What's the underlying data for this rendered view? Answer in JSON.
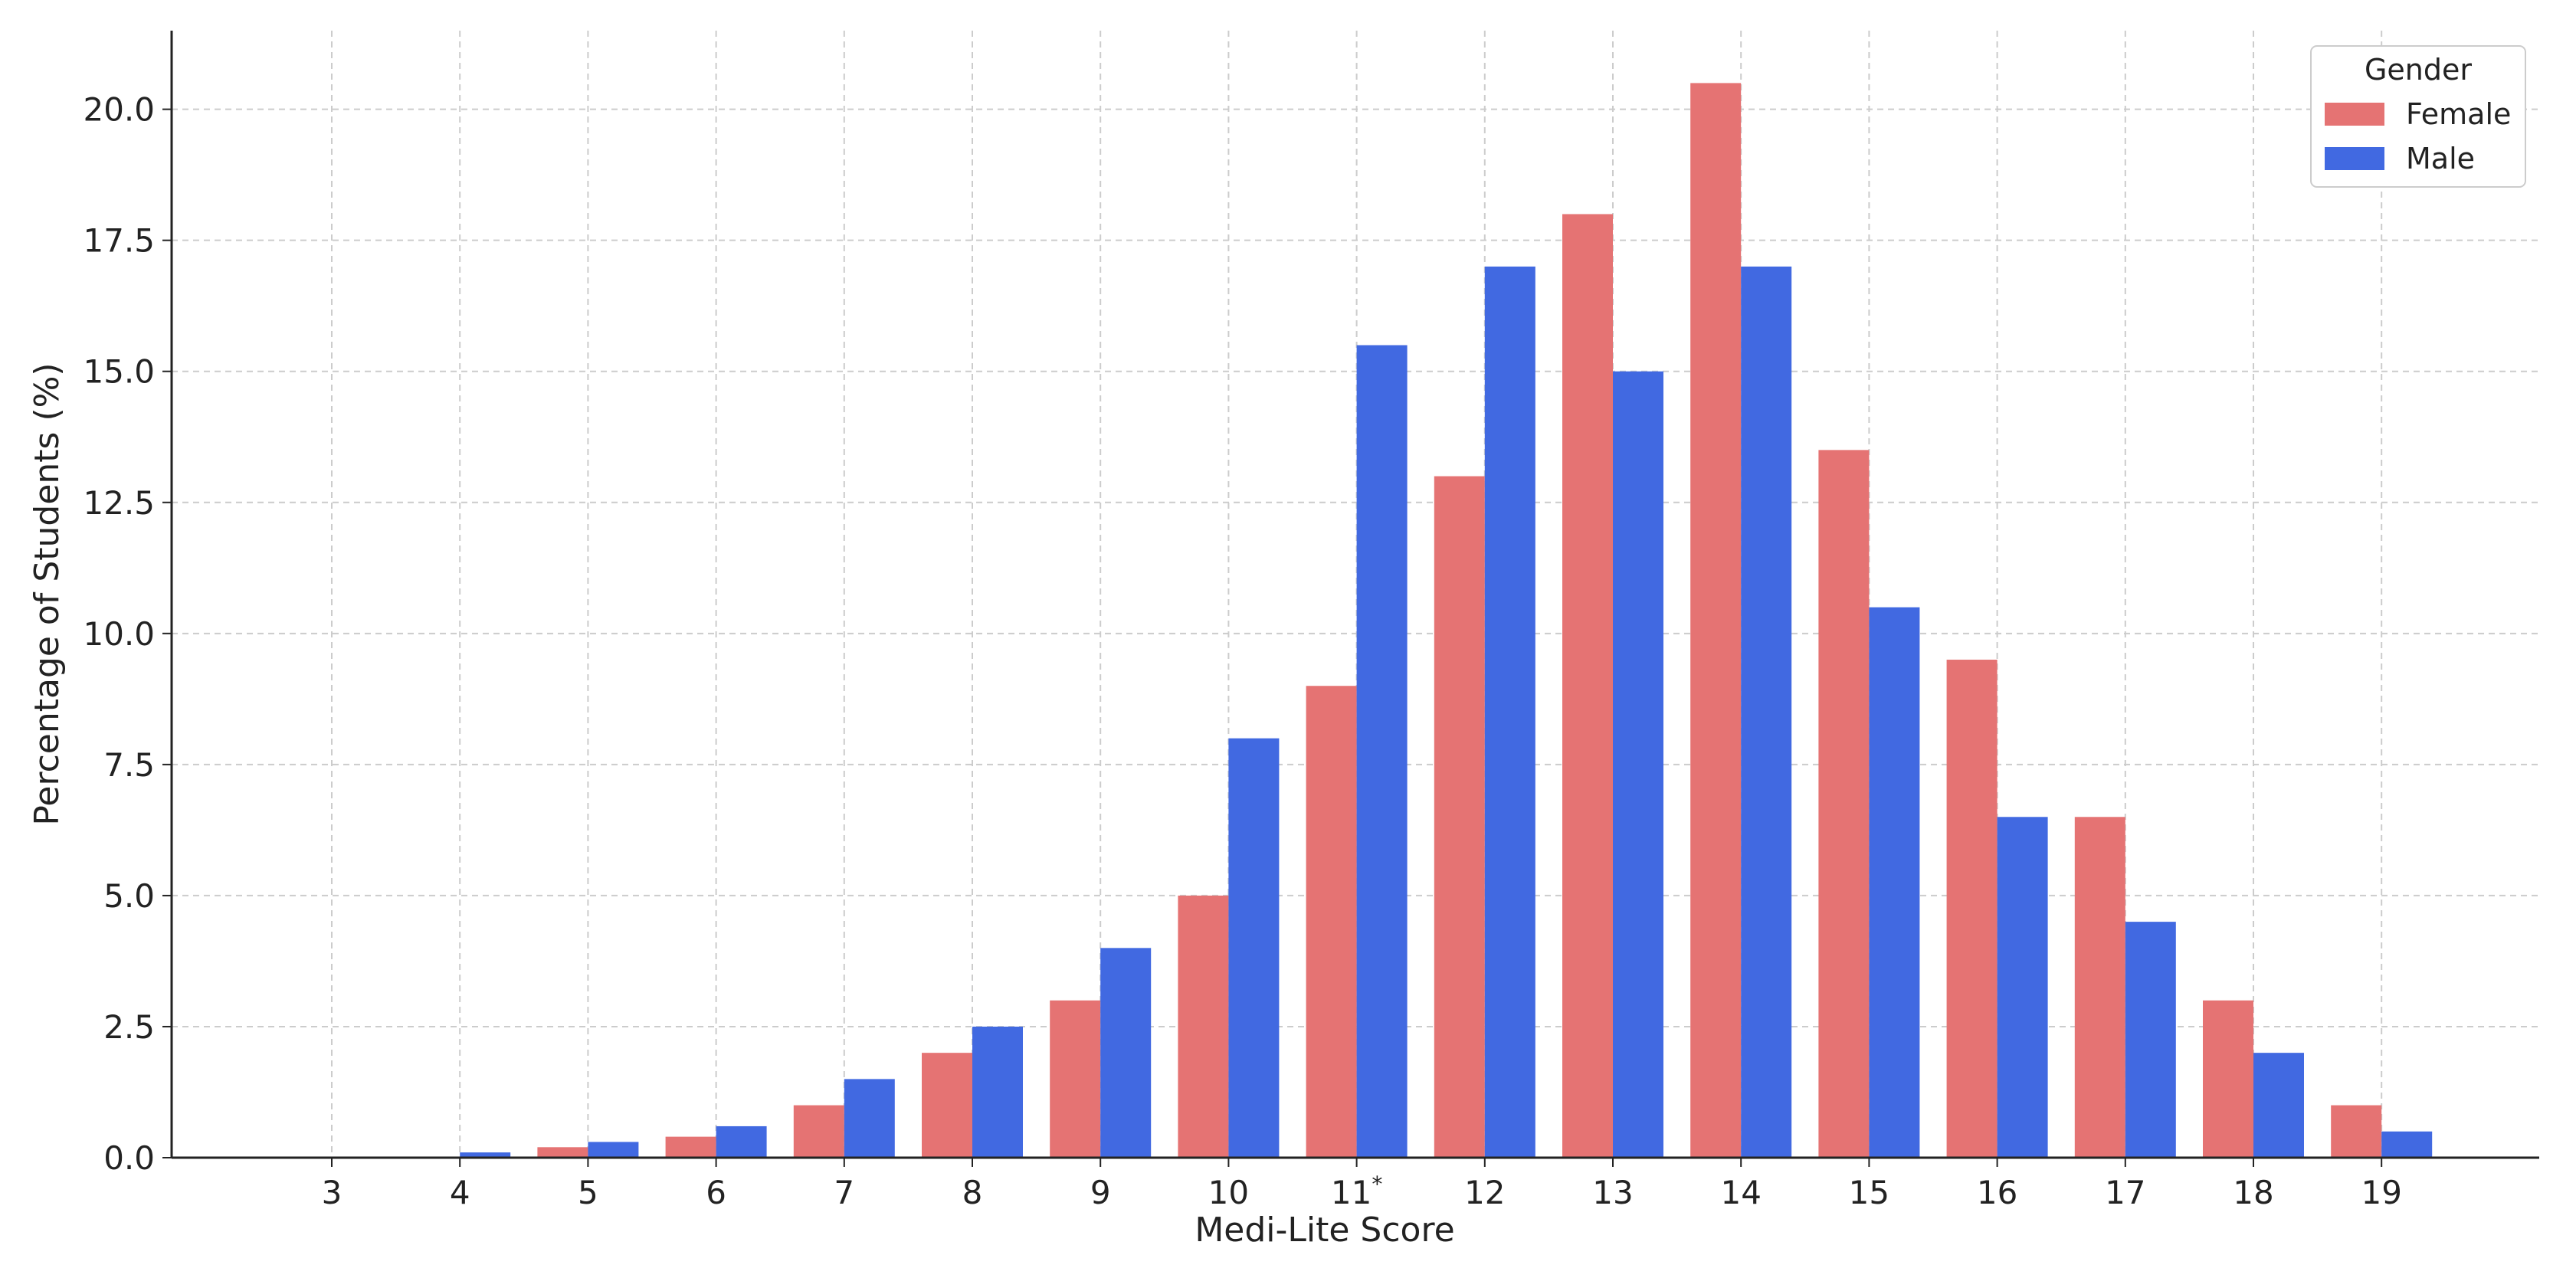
{
  "chart_data": {
    "type": "bar",
    "categories": [
      "3",
      "4",
      "5",
      "6",
      "7",
      "8",
      "9",
      "10",
      "11",
      "12",
      "13",
      "14",
      "15",
      "16",
      "17",
      "18",
      "19"
    ],
    "category_marks": [
      "",
      "",
      "",
      "",
      "",
      "",
      "",
      "",
      "*",
      "",
      "",
      "",
      "",
      "",
      "",
      "",
      ""
    ],
    "series": [
      {
        "name": "Female",
        "color": "#e57373",
        "values": [
          0,
          0,
          0.2,
          0.4,
          1.0,
          2.0,
          3.0,
          5.0,
          9.0,
          13.0,
          18.0,
          20.5,
          13.5,
          9.5,
          6.5,
          3.0,
          1.0
        ]
      },
      {
        "name": "Male",
        "color": "#4169e1",
        "values": [
          0,
          0.1,
          0.3,
          0.6,
          1.5,
          2.5,
          4.0,
          8.0,
          15.5,
          17.0,
          15.0,
          17.0,
          10.5,
          6.5,
          4.5,
          2.0,
          0.5
        ]
      }
    ],
    "title": "",
    "xlabel": "Medi-Lite Score",
    "ylabel": "Percentage of Students (%)",
    "ylim": [
      0,
      21.5
    ],
    "yticks": [
      0.0,
      2.5,
      5.0,
      7.5,
      10.0,
      12.5,
      15.0,
      17.5,
      20.0
    ],
    "ytick_labels": [
      "0.0",
      "2.5",
      "5.0",
      "7.5",
      "10.0",
      "12.5",
      "15.0",
      "17.5",
      "20.0"
    ],
    "grid": true,
    "legend": {
      "title": "Gender",
      "placement": "top-right"
    }
  }
}
